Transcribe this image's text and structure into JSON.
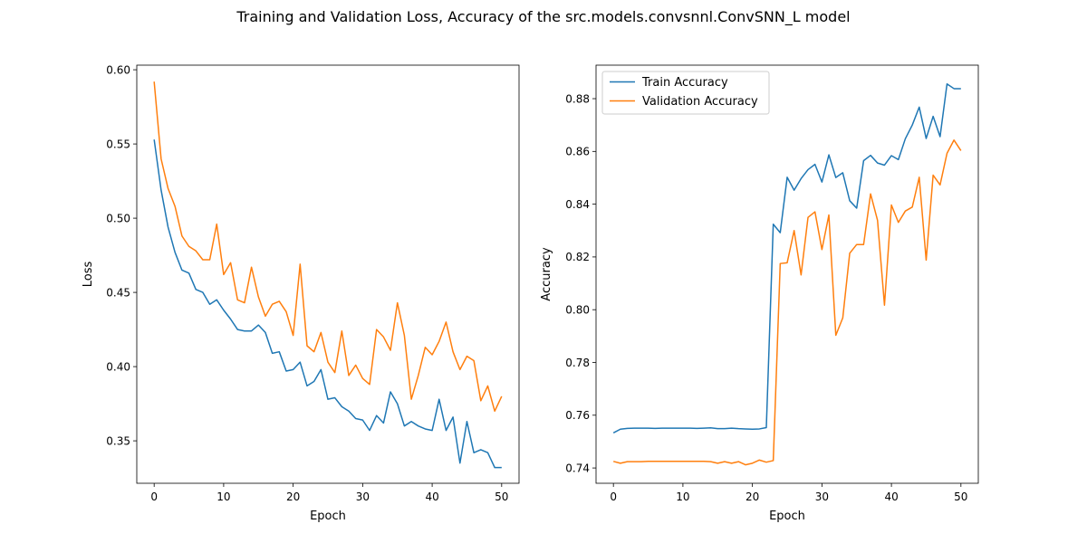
{
  "figure": {
    "title": "Training and Validation Loss, Accuracy of the src.models.convsnnl.ConvSNN_L model"
  },
  "colors": {
    "train": "#1f77b4",
    "validation": "#ff7f0e"
  },
  "chart_data": [
    {
      "type": "line",
      "xlabel": "Epoch",
      "ylabel": "Loss",
      "xlim": [
        -2.5,
        52.5
      ],
      "ylim": [
        0.3214,
        0.6031
      ],
      "xticks": [
        0,
        10,
        20,
        30,
        40,
        50
      ],
      "yticks": [
        0.35,
        0.4,
        0.45,
        0.5,
        0.55,
        0.6
      ],
      "ytick_labels": [
        "0.35",
        "0.40",
        "0.45",
        "0.50",
        "0.55",
        "0.60"
      ],
      "grid": false,
      "legend": null,
      "x": [
        0,
        1,
        2,
        3,
        4,
        5,
        6,
        7,
        8,
        9,
        10,
        11,
        12,
        13,
        14,
        15,
        16,
        17,
        18,
        19,
        20,
        21,
        22,
        23,
        24,
        25,
        26,
        27,
        28,
        29,
        30,
        31,
        32,
        33,
        34,
        35,
        36,
        37,
        38,
        39,
        40,
        41,
        42,
        43,
        44,
        45,
        46,
        47,
        48,
        49,
        50
      ],
      "series": [
        {
          "color_key": "train",
          "values": [
            0.553,
            0.519,
            0.494,
            0.477,
            0.465,
            0.463,
            0.452,
            0.45,
            0.442,
            0.445,
            0.438,
            0.432,
            0.425,
            0.424,
            0.424,
            0.428,
            0.423,
            0.409,
            0.41,
            0.397,
            0.398,
            0.403,
            0.387,
            0.39,
            0.398,
            0.378,
            0.379,
            0.373,
            0.37,
            0.365,
            0.364,
            0.357,
            0.367,
            0.362,
            0.383,
            0.375,
            0.36,
            0.363,
            0.36,
            0.358,
            0.357,
            0.378,
            0.357,
            0.366,
            0.335,
            0.363,
            0.342,
            0.344,
            0.342,
            0.332,
            0.332
          ]
        },
        {
          "color_key": "validation",
          "values": [
            0.592,
            0.54,
            0.52,
            0.508,
            0.488,
            0.481,
            0.478,
            0.472,
            0.472,
            0.496,
            0.462,
            0.47,
            0.445,
            0.443,
            0.467,
            0.447,
            0.434,
            0.442,
            0.444,
            0.437,
            0.421,
            0.469,
            0.414,
            0.41,
            0.423,
            0.403,
            0.396,
            0.424,
            0.394,
            0.401,
            0.392,
            0.388,
            0.425,
            0.42,
            0.411,
            0.443,
            0.421,
            0.378,
            0.394,
            0.413,
            0.408,
            0.417,
            0.43,
            0.41,
            0.398,
            0.407,
            0.404,
            0.377,
            0.387,
            0.37,
            0.38
          ]
        }
      ]
    },
    {
      "type": "line",
      "xlabel": "Epoch",
      "ylabel": "Accuracy",
      "xlim": [
        -2.5,
        52.5
      ],
      "ylim": [
        0.7342,
        0.8927
      ],
      "xticks": [
        0,
        10,
        20,
        30,
        40,
        50
      ],
      "yticks": [
        0.74,
        0.76,
        0.78,
        0.8,
        0.82,
        0.84,
        0.86,
        0.88
      ],
      "ytick_labels": [
        "0.74",
        "0.76",
        "0.78",
        "0.80",
        "0.82",
        "0.84",
        "0.86",
        "0.88"
      ],
      "grid": false,
      "legend": "upper-left",
      "x": [
        0,
        1,
        2,
        3,
        4,
        5,
        6,
        7,
        8,
        9,
        10,
        11,
        12,
        13,
        14,
        15,
        16,
        17,
        18,
        19,
        20,
        21,
        22,
        23,
        24,
        25,
        26,
        27,
        28,
        29,
        30,
        31,
        32,
        33,
        34,
        35,
        36,
        37,
        38,
        39,
        40,
        41,
        42,
        43,
        44,
        45,
        46,
        47,
        48,
        49,
        50
      ],
      "series": [
        {
          "name": "Train Accuracy",
          "color_key": "train",
          "values": [
            0.7533,
            0.7547,
            0.755,
            0.7551,
            0.7551,
            0.7551,
            0.755,
            0.7551,
            0.7551,
            0.7551,
            0.7551,
            0.7551,
            0.755,
            0.7551,
            0.7552,
            0.7549,
            0.7549,
            0.7551,
            0.7549,
            0.7548,
            0.7547,
            0.7548,
            0.7553,
            0.8324,
            0.8292,
            0.8502,
            0.8453,
            0.8497,
            0.8531,
            0.8551,
            0.8484,
            0.8587,
            0.8501,
            0.8519,
            0.8413,
            0.8385,
            0.8565,
            0.8585,
            0.8556,
            0.8548,
            0.8584,
            0.8569,
            0.8648,
            0.87,
            0.8768,
            0.8649,
            0.8733,
            0.8656,
            0.8856,
            0.8838,
            0.8838
          ]
        },
        {
          "name": "Validation Accuracy",
          "color_key": "validation",
          "values": [
            0.7425,
            0.7418,
            0.7424,
            0.7424,
            0.7424,
            0.7425,
            0.7425,
            0.7425,
            0.7425,
            0.7425,
            0.7425,
            0.7425,
            0.7425,
            0.7425,
            0.7424,
            0.7418,
            0.7424,
            0.7418,
            0.7424,
            0.7412,
            0.7418,
            0.743,
            0.7422,
            0.7428,
            0.8175,
            0.8178,
            0.83,
            0.8132,
            0.835,
            0.8371,
            0.8228,
            0.8359,
            0.7903,
            0.7969,
            0.8214,
            0.8247,
            0.8247,
            0.8439,
            0.8339,
            0.8017,
            0.8397,
            0.8331,
            0.8374,
            0.8389,
            0.8502,
            0.8188,
            0.851,
            0.8473,
            0.8593,
            0.8643,
            0.8603
          ]
        }
      ]
    }
  ]
}
